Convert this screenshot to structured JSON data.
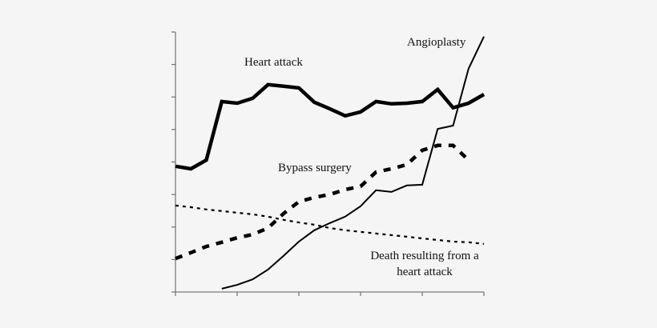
{
  "chart_data": {
    "type": "line",
    "title": "",
    "xlabel": "",
    "ylabel": "",
    "x": [
      0,
      1,
      2,
      3,
      4,
      5,
      6,
      7,
      8,
      9,
      10,
      11,
      12,
      13,
      14,
      15,
      16,
      17,
      18,
      19,
      20
    ],
    "x_major_ticks": [
      0,
      4,
      8,
      12,
      16,
      20
    ],
    "x_tick_labels": [],
    "y_ticks": [
      0,
      1,
      2,
      3,
      4,
      5,
      6,
      7,
      8
    ],
    "y_tick_labels": [],
    "ylim": [
      0,
      8
    ],
    "xlim": [
      0,
      20
    ],
    "grid": false,
    "legend": "inline-annotations",
    "series": [
      {
        "name": "Heart attack",
        "style": "thick-solid",
        "start_index": 0,
        "values": [
          3.87,
          3.79,
          4.06,
          5.86,
          5.81,
          5.96,
          6.38,
          6.33,
          6.28,
          5.84,
          5.64,
          5.42,
          5.54,
          5.86,
          5.79,
          5.81,
          5.86,
          6.23,
          5.67,
          5.81,
          6.08
        ]
      },
      {
        "name": "Angioplasty",
        "style": "thin-solid",
        "start_index": 3,
        "values": [
          0.1,
          0.22,
          0.39,
          0.69,
          1.11,
          1.55,
          1.9,
          2.12,
          2.32,
          2.64,
          3.13,
          3.08,
          3.28,
          3.3,
          5.02,
          5.12,
          6.87,
          7.86
        ]
      },
      {
        "name": "Bypass surgery",
        "style": "thick-dashed",
        "start_index": 0,
        "values": [
          1.03,
          1.21,
          1.4,
          1.53,
          1.67,
          1.77,
          1.97,
          2.41,
          2.78,
          2.91,
          3.0,
          3.15,
          3.25,
          3.69,
          3.79,
          3.92,
          4.36,
          4.51,
          4.51,
          4.06
        ]
      },
      {
        "name": "Death resulting from a heart attack",
        "style": "dotted",
        "start_index": 0,
        "values": [
          2.66,
          2.61,
          2.54,
          2.49,
          2.44,
          2.39,
          2.32,
          2.22,
          2.14,
          2.07,
          1.97,
          1.9,
          1.85,
          1.8,
          1.75,
          1.7,
          1.65,
          1.6,
          1.55,
          1.53,
          1.48
        ]
      }
    ],
    "annotations": [
      {
        "text": "Heart attack",
        "series": "Heart attack"
      },
      {
        "text": "Angioplasty",
        "series": "Angioplasty"
      },
      {
        "text": "Bypass surgery",
        "series": "Bypass surgery"
      },
      {
        "text_lines": [
          "Death resulting from a",
          "heart attack"
        ],
        "series": "Death resulting from a heart attack"
      }
    ]
  },
  "labels": {
    "heart_attack": "Heart attack",
    "angioplasty": "Angioplasty",
    "bypass": "Bypass surgery",
    "death_line1": "Death resulting from a",
    "death_line2": "heart attack"
  },
  "colors": {
    "background": "#f5f5f5",
    "axis": "#7a7a7a",
    "lines": "#000000"
  }
}
